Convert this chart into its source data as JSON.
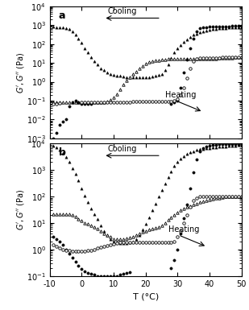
{
  "panel_a": {
    "label": "a",
    "cooling_label": "Cooling",
    "heating_label": "Heating",
    "ylim": [
      0.001,
      10000.0
    ],
    "yticks": [
      0.001,
      0.01,
      0.1,
      1.0,
      10.0,
      100.0,
      1000.0,
      10000.0
    ],
    "xlim": [
      -10,
      50
    ],
    "G_prime_cooling": {
      "T": [
        50,
        49,
        48,
        47,
        46,
        45,
        44,
        43,
        42,
        41,
        40,
        39,
        38,
        37,
        36,
        35,
        34,
        33,
        32,
        31,
        30,
        29,
        28,
        27,
        26,
        25,
        24,
        23,
        22,
        21,
        20,
        19,
        18,
        17,
        16,
        15,
        14,
        13,
        12,
        11,
        10,
        9,
        8,
        7,
        6,
        5,
        4,
        3,
        2,
        1,
        0,
        -1,
        -2,
        -3,
        -4,
        -5,
        -6,
        -7,
        -8,
        -9
      ],
      "G": [
        800,
        790,
        780,
        760,
        740,
        720,
        700,
        680,
        650,
        620,
        580,
        530,
        480,
        420,
        360,
        300,
        240,
        180,
        130,
        90,
        60,
        35,
        18,
        8,
        4,
        2.5,
        2.2,
        2.0,
        1.9,
        1.8,
        1.8,
        1.8,
        1.8,
        1.8,
        1.8,
        1.8,
        1.8,
        1.9,
        2.0,
        2.1,
        2.2,
        2.5,
        3,
        4,
        5,
        8,
        12,
        20,
        35,
        60,
        120,
        200,
        320,
        480,
        600,
        680,
        730,
        760,
        790,
        800
      ]
    },
    "G_double_prime_cooling": {
      "T": [
        50,
        49,
        48,
        47,
        46,
        45,
        44,
        43,
        42,
        41,
        40,
        39,
        38,
        37,
        36,
        35,
        34,
        33,
        32,
        31,
        30,
        29,
        28,
        27,
        26,
        25,
        24,
        23,
        22,
        21,
        20,
        19,
        18,
        17,
        16,
        15,
        14,
        13,
        12,
        11,
        10,
        9,
        8,
        7,
        6,
        5,
        4,
        3,
        2,
        1,
        0,
        -1,
        -2,
        -3,
        -4,
        -5,
        -6,
        -7,
        -8,
        -9
      ],
      "G": [
        20,
        20,
        20,
        19,
        19,
        18,
        18,
        18,
        17,
        17,
        17,
        17,
        17,
        17,
        17,
        17,
        17,
        17,
        17,
        17,
        17,
        16,
        16,
        16,
        15,
        15,
        14,
        13,
        12,
        11,
        9,
        7,
        5,
        3.5,
        2.5,
        1.8,
        1.2,
        0.7,
        0.4,
        0.22,
        0.15,
        0.11,
        0.09,
        0.085,
        0.08,
        0.08,
        0.08,
        0.08,
        0.08,
        0.08,
        0.08,
        0.08,
        0.08,
        0.08,
        0.08,
        0.08,
        0.08,
        0.08,
        0.08,
        0.08
      ]
    },
    "G_prime_heating": {
      "T": [
        -9,
        -8,
        -7,
        -6,
        -5,
        -4,
        -3,
        -2,
        -1,
        0,
        1,
        2,
        3,
        28,
        29,
        30,
        31,
        32,
        33,
        34,
        35,
        36,
        37,
        38,
        39,
        40,
        41,
        42,
        43,
        44,
        45,
        46,
        47,
        48,
        49,
        50
      ],
      "G": [
        0.001,
        0.002,
        0.005,
        0.008,
        0.01,
        0.05,
        0.08,
        0.1,
        0.08,
        0.07,
        0.07,
        0.07,
        0.07,
        0.07,
        0.08,
        0.1,
        0.5,
        3,
        15,
        60,
        200,
        450,
        680,
        760,
        790,
        820,
        840,
        850,
        860,
        865,
        870,
        875,
        880,
        885,
        890,
        900
      ]
    },
    "G_double_prime_heating": {
      "T": [
        -9,
        -8,
        -7,
        0,
        1,
        2,
        3,
        4,
        5,
        6,
        7,
        8,
        9,
        10,
        11,
        12,
        13,
        14,
        15,
        16,
        17,
        18,
        19,
        20,
        21,
        22,
        23,
        24,
        25,
        26,
        27,
        28,
        29,
        30,
        31,
        32,
        33,
        34,
        35,
        36,
        37,
        38,
        39,
        40,
        41,
        42,
        43,
        44,
        45,
        46,
        47,
        48,
        49,
        50
      ],
      "G": [
        0.065,
        0.07,
        0.075,
        0.08,
        0.08,
        0.08,
        0.08,
        0.08,
        0.08,
        0.08,
        0.08,
        0.08,
        0.08,
        0.085,
        0.085,
        0.085,
        0.085,
        0.085,
        0.085,
        0.09,
        0.09,
        0.09,
        0.09,
        0.09,
        0.09,
        0.09,
        0.09,
        0.09,
        0.09,
        0.09,
        0.09,
        0.09,
        0.1,
        0.12,
        0.2,
        0.5,
        1.5,
        5,
        12,
        17,
        18,
        18,
        18,
        19,
        19,
        19,
        19,
        20,
        20,
        20,
        20,
        20,
        21,
        21
      ]
    }
  },
  "panel_b": {
    "label": "b",
    "cooling_label": "Cooling",
    "heating_label": "Heating",
    "ylim": [
      0.1,
      10000.0
    ],
    "yticks": [
      0.1,
      1.0,
      10.0,
      100.0,
      1000.0,
      10000.0
    ],
    "xlim": [
      -10,
      50
    ],
    "G_prime_cooling": {
      "T": [
        50,
        49,
        48,
        47,
        46,
        45,
        44,
        43,
        42,
        41,
        40,
        39,
        38,
        37,
        36,
        35,
        34,
        33,
        32,
        31,
        30,
        29,
        28,
        27,
        26,
        25,
        24,
        23,
        22,
        21,
        20,
        19,
        18,
        17,
        16,
        15,
        14,
        13,
        12,
        11,
        10,
        9,
        8,
        7,
        6,
        5,
        4,
        3,
        2,
        1,
        0,
        -1,
        -2,
        -3,
        -4,
        -5,
        -6,
        -7,
        -8,
        -9
      ],
      "G": [
        9000,
        8800,
        8600,
        8400,
        8200,
        8000,
        7800,
        7600,
        7400,
        7200,
        7000,
        6800,
        6500,
        6200,
        5800,
        5300,
        4700,
        4100,
        3400,
        2700,
        2000,
        1400,
        900,
        550,
        320,
        180,
        100,
        55,
        30,
        16,
        9,
        5.5,
        3.5,
        2.5,
        2,
        1.8,
        1.7,
        1.7,
        1.7,
        1.8,
        2,
        2.5,
        3.5,
        5,
        8,
        14,
        22,
        35,
        60,
        110,
        200,
        400,
        700,
        1200,
        2000,
        3200,
        4600,
        6000,
        7200,
        8200
      ]
    },
    "G_double_prime_cooling": {
      "T": [
        50,
        49,
        48,
        47,
        46,
        45,
        44,
        43,
        42,
        41,
        40,
        39,
        38,
        37,
        36,
        35,
        34,
        33,
        32,
        31,
        30,
        29,
        28,
        27,
        26,
        25,
        24,
        23,
        22,
        21,
        20,
        19,
        18,
        17,
        16,
        15,
        14,
        13,
        12,
        11,
        10,
        9,
        8,
        7,
        6,
        5,
        4,
        3,
        2,
        1,
        0,
        -1,
        -2,
        -3,
        -4,
        -5,
        -6,
        -7,
        -8,
        -9
      ],
      "G": [
        100,
        100,
        100,
        100,
        100,
        100,
        95,
        90,
        85,
        80,
        75,
        70,
        65,
        60,
        55,
        50,
        45,
        40,
        35,
        30,
        25,
        20,
        16,
        13,
        10,
        8,
        7,
        6.5,
        6,
        5.5,
        5,
        4.5,
        4,
        3.5,
        3,
        2.8,
        2.6,
        2.5,
        2.5,
        2.5,
        2.5,
        3,
        3.5,
        4,
        5,
        6,
        7,
        8,
        9,
        10,
        12,
        14,
        17,
        20,
        22,
        22,
        22,
        22,
        22,
        22
      ]
    },
    "G_prime_heating": {
      "T": [
        -9,
        -8,
        -7,
        -6,
        -5,
        -4,
        -3,
        -2,
        -1,
        0,
        1,
        2,
        3,
        4,
        5,
        6,
        7,
        8,
        9,
        10,
        11,
        12,
        13,
        14,
        15,
        28,
        29,
        30,
        31,
        32,
        33,
        34,
        35,
        36,
        37,
        38,
        39,
        40,
        41,
        42,
        43,
        44,
        45,
        46,
        47,
        48,
        49,
        50
      ],
      "G": [
        3,
        2.5,
        2,
        1.5,
        1,
        0.7,
        0.5,
        0.35,
        0.25,
        0.18,
        0.15,
        0.13,
        0.12,
        0.11,
        0.1,
        0.1,
        0.1,
        0.1,
        0.1,
        0.1,
        0.1,
        0.11,
        0.12,
        0.13,
        0.14,
        0.2,
        0.4,
        1,
        4,
        15,
        50,
        200,
        800,
        2500,
        5000,
        7000,
        8000,
        8500,
        9000,
        9200,
        9400,
        9500,
        9600,
        9700,
        9700,
        9800,
        9800,
        9900
      ]
    },
    "G_double_prime_heating": {
      "T": [
        -9,
        -8,
        -7,
        -6,
        -5,
        -4,
        -3,
        -2,
        -1,
        0,
        1,
        2,
        3,
        4,
        5,
        6,
        7,
        8,
        9,
        10,
        11,
        12,
        13,
        14,
        15,
        16,
        17,
        18,
        19,
        20,
        21,
        22,
        23,
        24,
        25,
        26,
        27,
        28,
        29,
        30,
        31,
        32,
        33,
        34,
        35,
        36,
        37,
        38,
        39,
        40,
        41,
        42,
        43,
        44,
        45,
        46,
        47,
        48,
        49,
        50
      ],
      "G": [
        1.5,
        1.3,
        1.1,
        1.0,
        0.95,
        0.9,
        0.88,
        0.87,
        0.87,
        0.87,
        0.88,
        0.9,
        0.95,
        1.0,
        1.1,
        1.2,
        1.3,
        1.4,
        1.5,
        1.6,
        1.7,
        1.8,
        1.8,
        1.8,
        1.8,
        1.8,
        1.8,
        1.8,
        1.8,
        1.8,
        1.8,
        1.8,
        1.8,
        1.8,
        1.8,
        1.8,
        1.8,
        1.8,
        2,
        3,
        5,
        10,
        20,
        40,
        70,
        90,
        100,
        100,
        100,
        100,
        100,
        100,
        100,
        100,
        100,
        100,
        100,
        100,
        100,
        100
      ]
    }
  },
  "xlabel": "T (°C)",
  "ylabel": "G', G''(Pa)",
  "xticks": [
    -10,
    0,
    10,
    20,
    30,
    40,
    50
  ],
  "xticklabels": [
    "-10",
    "0",
    "10",
    "20",
    "30",
    "40",
    "50"
  ],
  "background_color": "#ffffff",
  "marker_size": 2.5
}
